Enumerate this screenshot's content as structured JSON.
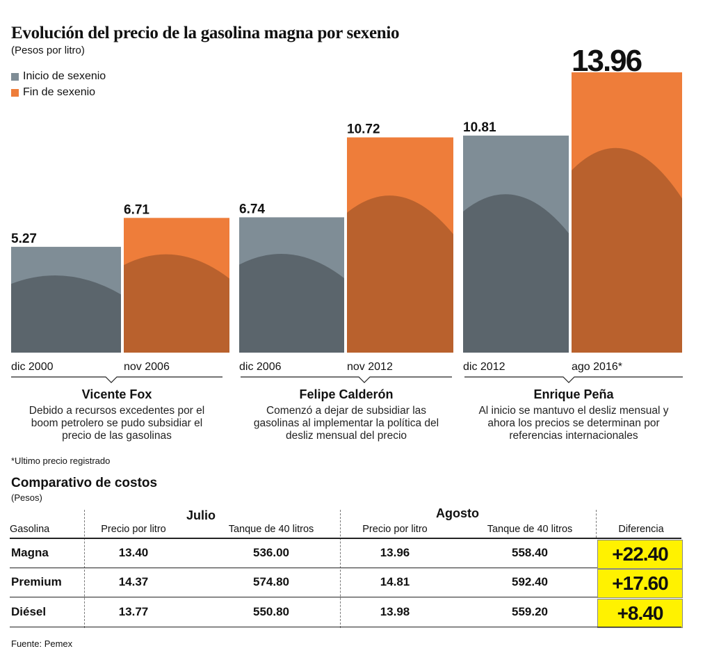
{
  "header": {
    "title": "Evolución del precio de la gasolina magna por sexenio",
    "subtitle": "(Pesos por litro)"
  },
  "legend": [
    {
      "label": "Inicio de sexenio",
      "color": "#7f8d96"
    },
    {
      "label": "Fin de sexenio",
      "color": "#ee7d3a"
    }
  ],
  "chart_data": {
    "type": "bar",
    "categories": [
      "dic 2000",
      "nov 2006",
      "dic 2006",
      "nov 2012",
      "dic 2012",
      "ago 2016*"
    ],
    "values": [
      5.27,
      6.71,
      6.74,
      10.72,
      10.81,
      13.96
    ],
    "value_labels": [
      "5.27",
      "6.71",
      "6.74",
      "10.72",
      "10.81",
      "13.96"
    ],
    "bar_kinds": [
      "inicio",
      "fin",
      "inicio",
      "fin",
      "inicio",
      "fin"
    ],
    "ylim": [
      0,
      13.96
    ]
  },
  "periods": [
    {
      "name": "Vicente Fox",
      "description": [
        "Debido a recursos excedentes por el",
        "boom petrolero se pudo subsidiar el",
        "precio de las gasolinas"
      ]
    },
    {
      "name": "Felipe Calderón",
      "description": [
        "Comenzó a dejar de subsidiar las",
        "gasolinas al implementar la política del",
        "desliz mensual del precio"
      ]
    },
    {
      "name": "Enrique Peña",
      "description": [
        "Al inicio se mantuvo el desliz mensual y",
        "ahora los precios se determinan por",
        "referencias internacionales"
      ]
    }
  ],
  "footnote": "*Ultimo precio registrado",
  "table": {
    "title": "Comparativo de costos",
    "unit": "(Pesos)",
    "group_julio": "Julio",
    "group_agosto": "Agosto",
    "col_gasolina": "Gasolina",
    "col_precio": "Precio por litro",
    "col_tanque": "Tanque de 40 litros",
    "col_diferencia": "Diferencia",
    "rows": [
      {
        "name": "Magna",
        "julio_precio": "13.40",
        "julio_tanque": "536.00",
        "agosto_precio": "13.96",
        "agosto_tanque": "558.40",
        "diferencia": "+22.40"
      },
      {
        "name": "Premium",
        "julio_precio": "14.37",
        "julio_tanque": "574.80",
        "agosto_precio": "14.81",
        "agosto_tanque": "592.40",
        "diferencia": "+17.60"
      },
      {
        "name": "Diésel",
        "julio_precio": "13.77",
        "julio_tanque": "550.80",
        "agosto_precio": "13.98",
        "agosto_tanque": "559.20",
        "diferencia": "+8.40"
      }
    ]
  },
  "source": "Fuente: Pemex"
}
